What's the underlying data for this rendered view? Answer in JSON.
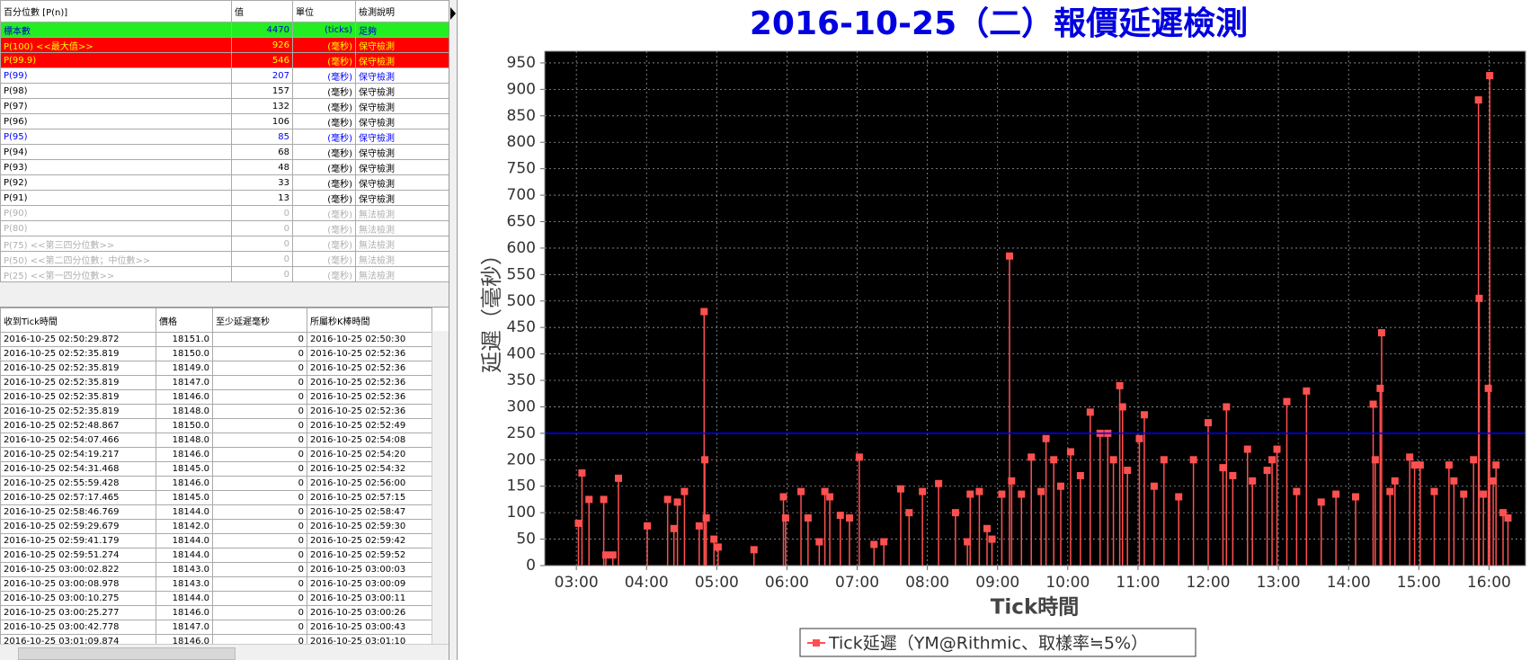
{
  "percentile_table": {
    "columns": [
      "百分位數 [P(n)]",
      "值",
      "單位",
      "檢測說明"
    ],
    "rows": [
      [
        "標本數",
        4470,
        "(ticks)",
        "足夠"
      ],
      [
        "P(100)  <<最大值>>",
        926,
        "(毫秒)",
        "保守檢測"
      ],
      [
        "P(99.9)",
        546,
        "(毫秒)",
        "保守檢測"
      ],
      [
        "P(99)",
        207,
        "(毫秒)",
        "保守檢測"
      ],
      [
        "P(98)",
        157,
        "(毫秒)",
        "保守檢測"
      ],
      [
        "P(97)",
        132,
        "(毫秒)",
        "保守檢測"
      ],
      [
        "P(96)",
        106,
        "(毫秒)",
        "保守檢測"
      ],
      [
        "P(95)",
        85,
        "(毫秒)",
        "保守檢測"
      ],
      [
        "P(94)",
        68,
        "(毫秒)",
        "保守檢測"
      ],
      [
        "P(93)",
        48,
        "(毫秒)",
        "保守檢測"
      ],
      [
        "P(92)",
        33,
        "(毫秒)",
        "保守檢測"
      ],
      [
        "P(91)",
        13,
        "(毫秒)",
        "保守檢測"
      ],
      [
        "P(90)",
        0,
        "(毫秒)",
        "無法檢測"
      ],
      [
        "P(80)",
        0,
        "(毫秒)",
        "無法檢測"
      ],
      [
        "P(75)  <<第三四分位數>>",
        0,
        "(毫秒)",
        "無法檢測"
      ],
      [
        "P(50)  <<第二四分位數；中位數>>",
        0,
        "(毫秒)",
        "無法檢測"
      ],
      [
        "P(25)  <<第一四分位數>>",
        0,
        "(毫秒)",
        "無法檢測"
      ]
    ]
  },
  "tick_table": {
    "columns": [
      "收到Tick時間",
      "價格",
      "至少延遲毫秒",
      "所屬秒K棒時間"
    ],
    "rows": [
      [
        "2016-10-25 02:50:29.872",
        "18151.0",
        0,
        "2016-10-25 02:50:30"
      ],
      [
        "2016-10-25 02:52:35.819",
        "18150.0",
        0,
        "2016-10-25 02:52:36"
      ],
      [
        "2016-10-25 02:52:35.819",
        "18149.0",
        0,
        "2016-10-25 02:52:36"
      ],
      [
        "2016-10-25 02:52:35.819",
        "18147.0",
        0,
        "2016-10-25 02:52:36"
      ],
      [
        "2016-10-25 02:52:35.819",
        "18146.0",
        0,
        "2016-10-25 02:52:36"
      ],
      [
        "2016-10-25 02:52:35.819",
        "18148.0",
        0,
        "2016-10-25 02:52:36"
      ],
      [
        "2016-10-25 02:52:48.867",
        "18150.0",
        0,
        "2016-10-25 02:52:49"
      ],
      [
        "2016-10-25 02:54:07.466",
        "18148.0",
        0,
        "2016-10-25 02:54:08"
      ],
      [
        "2016-10-25 02:54:19.217",
        "18146.0",
        0,
        "2016-10-25 02:54:20"
      ],
      [
        "2016-10-25 02:54:31.468",
        "18145.0",
        0,
        "2016-10-25 02:54:32"
      ],
      [
        "2016-10-25 02:55:59.428",
        "18146.0",
        0,
        "2016-10-25 02:56:00"
      ],
      [
        "2016-10-25 02:57:17.465",
        "18145.0",
        0,
        "2016-10-25 02:57:15"
      ],
      [
        "2016-10-25 02:58:46.769",
        "18144.0",
        0,
        "2016-10-25 02:58:47"
      ],
      [
        "2016-10-25 02:59:29.679",
        "18142.0",
        0,
        "2016-10-25 02:59:30"
      ],
      [
        "2016-10-25 02:59:41.179",
        "18144.0",
        0,
        "2016-10-25 02:59:42"
      ],
      [
        "2016-10-25 02:59:51.274",
        "18144.0",
        0,
        "2016-10-25 02:59:52"
      ],
      [
        "2016-10-25 03:00:02.822",
        "18143.0",
        0,
        "2016-10-25 03:00:03"
      ],
      [
        "2016-10-25 03:00:08.978",
        "18143.0",
        0,
        "2016-10-25 03:00:09"
      ],
      [
        "2016-10-25 03:00:10.275",
        "18144.0",
        0,
        "2016-10-25 03:00:11"
      ],
      [
        "2016-10-25 03:00:25.277",
        "18146.0",
        0,
        "2016-10-25 03:00:26"
      ],
      [
        "2016-10-25 03:00:42.778",
        "18147.0",
        0,
        "2016-10-25 03:00:43"
      ],
      [
        "2016-10-25 03:01:09.874",
        "18146.0",
        0,
        "2016-10-25 03:01:10"
      ]
    ]
  },
  "chart_data": {
    "type": "stem",
    "title": "2016-10-25（二）報價延遲檢測",
    "x_label": "Tick時間",
    "y_label": "延遲（毫秒）",
    "x": [
      3.03,
      3.08,
      3.18,
      3.39,
      3.42,
      3.52,
      3.6,
      4.01,
      4.3,
      4.39,
      4.44,
      4.54,
      4.75,
      4.82,
      4.83,
      4.85,
      4.96,
      5.02,
      5.53,
      5.95,
      5.98,
      6.2,
      6.3,
      6.46,
      6.54,
      6.61,
      6.76,
      6.89,
      7.03,
      7.24,
      7.38,
      7.62,
      7.74,
      7.93,
      8.16,
      8.4,
      8.57,
      8.61,
      8.74,
      8.85,
      8.92,
      9.06,
      9.17,
      9.2,
      9.34,
      9.48,
      9.62,
      9.69,
      9.8,
      9.9,
      10.04,
      10.18,
      10.32,
      10.46,
      10.57,
      10.65,
      10.74,
      10.78,
      10.85,
      11.02,
      11.09,
      11.23,
      11.37,
      11.58,
      11.79,
      12.0,
      12.21,
      12.26,
      12.35,
      12.56,
      12.63,
      12.84,
      12.91,
      12.98,
      13.12,
      13.26,
      13.4,
      13.61,
      13.82,
      14.1,
      14.35,
      14.38,
      14.45,
      14.47,
      14.59,
      14.66,
      14.87,
      14.94,
      15.02,
      15.22,
      15.43,
      15.5,
      15.64,
      15.78,
      15.85,
      15.86,
      15.92,
      15.99,
      16.01,
      16.06,
      16.1,
      16.2,
      16.27
    ],
    "series": [
      {
        "name": "Tick延遲（YM@Rithmic、取樣率≒5%）",
        "color": "#ff5050",
        "values": [
          80,
          175,
          125,
          125,
          20,
          20,
          165,
          75,
          125,
          70,
          120,
          140,
          75,
          480,
          200,
          90,
          50,
          35,
          30,
          130,
          90,
          140,
          90,
          45,
          140,
          130,
          95,
          90,
          205,
          40,
          45,
          145,
          100,
          140,
          155,
          100,
          45,
          135,
          140,
          70,
          50,
          135,
          585,
          160,
          135,
          205,
          140,
          240,
          200,
          150,
          215,
          170,
          290,
          250,
          250,
          200,
          340,
          300,
          180,
          240,
          285,
          150,
          200,
          130,
          200,
          270,
          185,
          300,
          170,
          220,
          160,
          180,
          200,
          220,
          310,
          140,
          330,
          120,
          135,
          130,
          305,
          200,
          335,
          440,
          140,
          160,
          205,
          190,
          190,
          140,
          190,
          160,
          135,
          200,
          880,
          505,
          135,
          335,
          926,
          160,
          190,
          100,
          90
        ]
      }
    ],
    "xlim": [
      2.55,
      16.52
    ],
    "xticks": [
      {
        "value": 3,
        "label": "03:00"
      },
      {
        "value": 4,
        "label": "04:00"
      },
      {
        "value": 5,
        "label": "05:00"
      },
      {
        "value": 6,
        "label": "06:00"
      },
      {
        "value": 7,
        "label": "07:00"
      },
      {
        "value": 8,
        "label": "08:00"
      },
      {
        "value": 9,
        "label": "09:00"
      },
      {
        "value": 10,
        "label": "10:00"
      },
      {
        "value": 11,
        "label": "11:00"
      },
      {
        "value": 12,
        "label": "12:00"
      },
      {
        "value": 13,
        "label": "13:00"
      },
      {
        "value": 14,
        "label": "14:00"
      },
      {
        "value": 15,
        "label": "15:00"
      },
      {
        "value": 16,
        "label": "16:00"
      }
    ],
    "ylim": [
      0,
      972
    ],
    "yticks": [
      0,
      50,
      100,
      150,
      200,
      250,
      300,
      350,
      400,
      450,
      500,
      550,
      600,
      650,
      700,
      750,
      800,
      850,
      900,
      950
    ],
    "grid": true,
    "background": "#000000",
    "reference_line": {
      "value": 250,
      "color": "#0000ff"
    }
  }
}
